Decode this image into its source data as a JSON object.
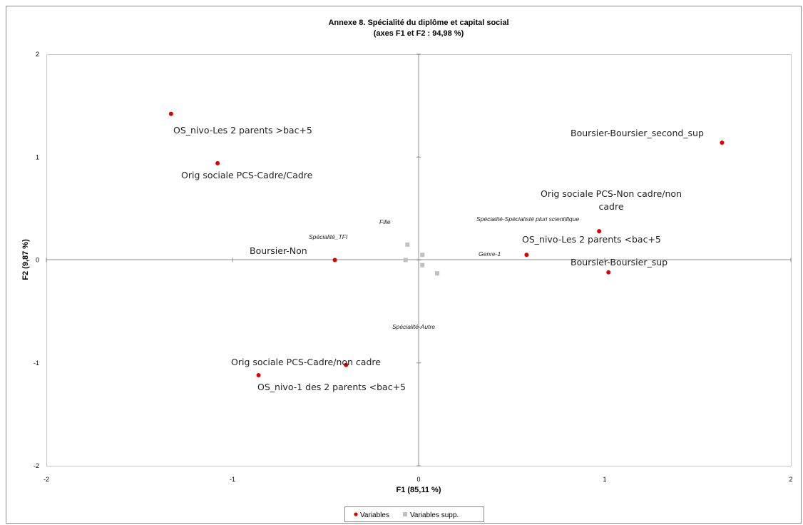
{
  "chart_data": {
    "type": "scatter",
    "title": [
      "Annexe 8. Spécialité du diplôme et capital social",
      "(axes F1 et F2 : 94,98 %)"
    ],
    "xlabel": "F1 (85,11 %)",
    "ylabel": "F2 (9,87 %)",
    "xlim": [
      -2,
      2
    ],
    "ylim": [
      -2,
      2
    ],
    "xticks": [
      -2,
      -1,
      0,
      1,
      2
    ],
    "yticks": [
      -2,
      -1,
      0,
      1,
      2
    ],
    "xtick_labels": [
      "-2",
      "-1",
      "0",
      "1",
      "2"
    ],
    "ytick_labels": [
      "-2",
      "-1",
      "0",
      "1",
      "2"
    ],
    "grid": false,
    "legend_position": "bottom",
    "series": [
      {
        "name": "Variables",
        "marker": "circle",
        "color": "#e00000",
        "points": [
          {
            "x": -1.33,
            "y": 1.42
          },
          {
            "x": -1.08,
            "y": 0.94
          },
          {
            "x": -0.45,
            "y": 0.0
          },
          {
            "x": -0.39,
            "y": -1.02
          },
          {
            "x": -0.86,
            "y": -1.12
          },
          {
            "x": 1.63,
            "y": 1.14
          },
          {
            "x": 0.97,
            "y": 0.28
          },
          {
            "x": 0.58,
            "y": 0.05
          },
          {
            "x": 1.02,
            "y": -0.12
          }
        ]
      },
      {
        "name": "Variables supp.",
        "marker": "square",
        "color": "#c0c0c0",
        "points": [
          {
            "x": -0.06,
            "y": 0.15
          },
          {
            "x": -0.07,
            "y": 0.0
          },
          {
            "x": 0.02,
            "y": 0.05
          },
          {
            "x": 0.02,
            "y": -0.05
          },
          {
            "x": 0.1,
            "y": -0.13
          }
        ]
      }
    ],
    "labels": [
      {
        "text": "OS_nivo-Les 2 parents >bac+5",
        "style": "main"
      },
      {
        "text": "Orig sociale PCS-Cadre/Cadre",
        "style": "main"
      },
      {
        "text": "Boursier-Non",
        "style": "main"
      },
      {
        "text": "Orig sociale PCS-Cadre/non cadre",
        "style": "main"
      },
      {
        "text": "OS_nivo-1 des 2 parents <bac+5",
        "style": "main"
      },
      {
        "text": "Boursier-Boursier_second_sup",
        "style": "main"
      },
      {
        "text": "Orig sociale PCS-Non cadre/non",
        "style": "main"
      },
      {
        "text": "cadre",
        "style": "main"
      },
      {
        "text": "OS_nivo-Les 2 parents <bac+5",
        "style": "main"
      },
      {
        "text": "Boursier-Boursier_sup",
        "style": "main"
      },
      {
        "text": "Fille",
        "style": "supp"
      },
      {
        "text": "Spécialité_TFI",
        "style": "supp"
      },
      {
        "text": "Spécialité-Spécialisté pluri scientifique",
        "style": "supp"
      },
      {
        "text": "Genre-1",
        "style": "supp"
      },
      {
        "text": "Spécialité-Autre",
        "style": "supp"
      }
    ]
  }
}
